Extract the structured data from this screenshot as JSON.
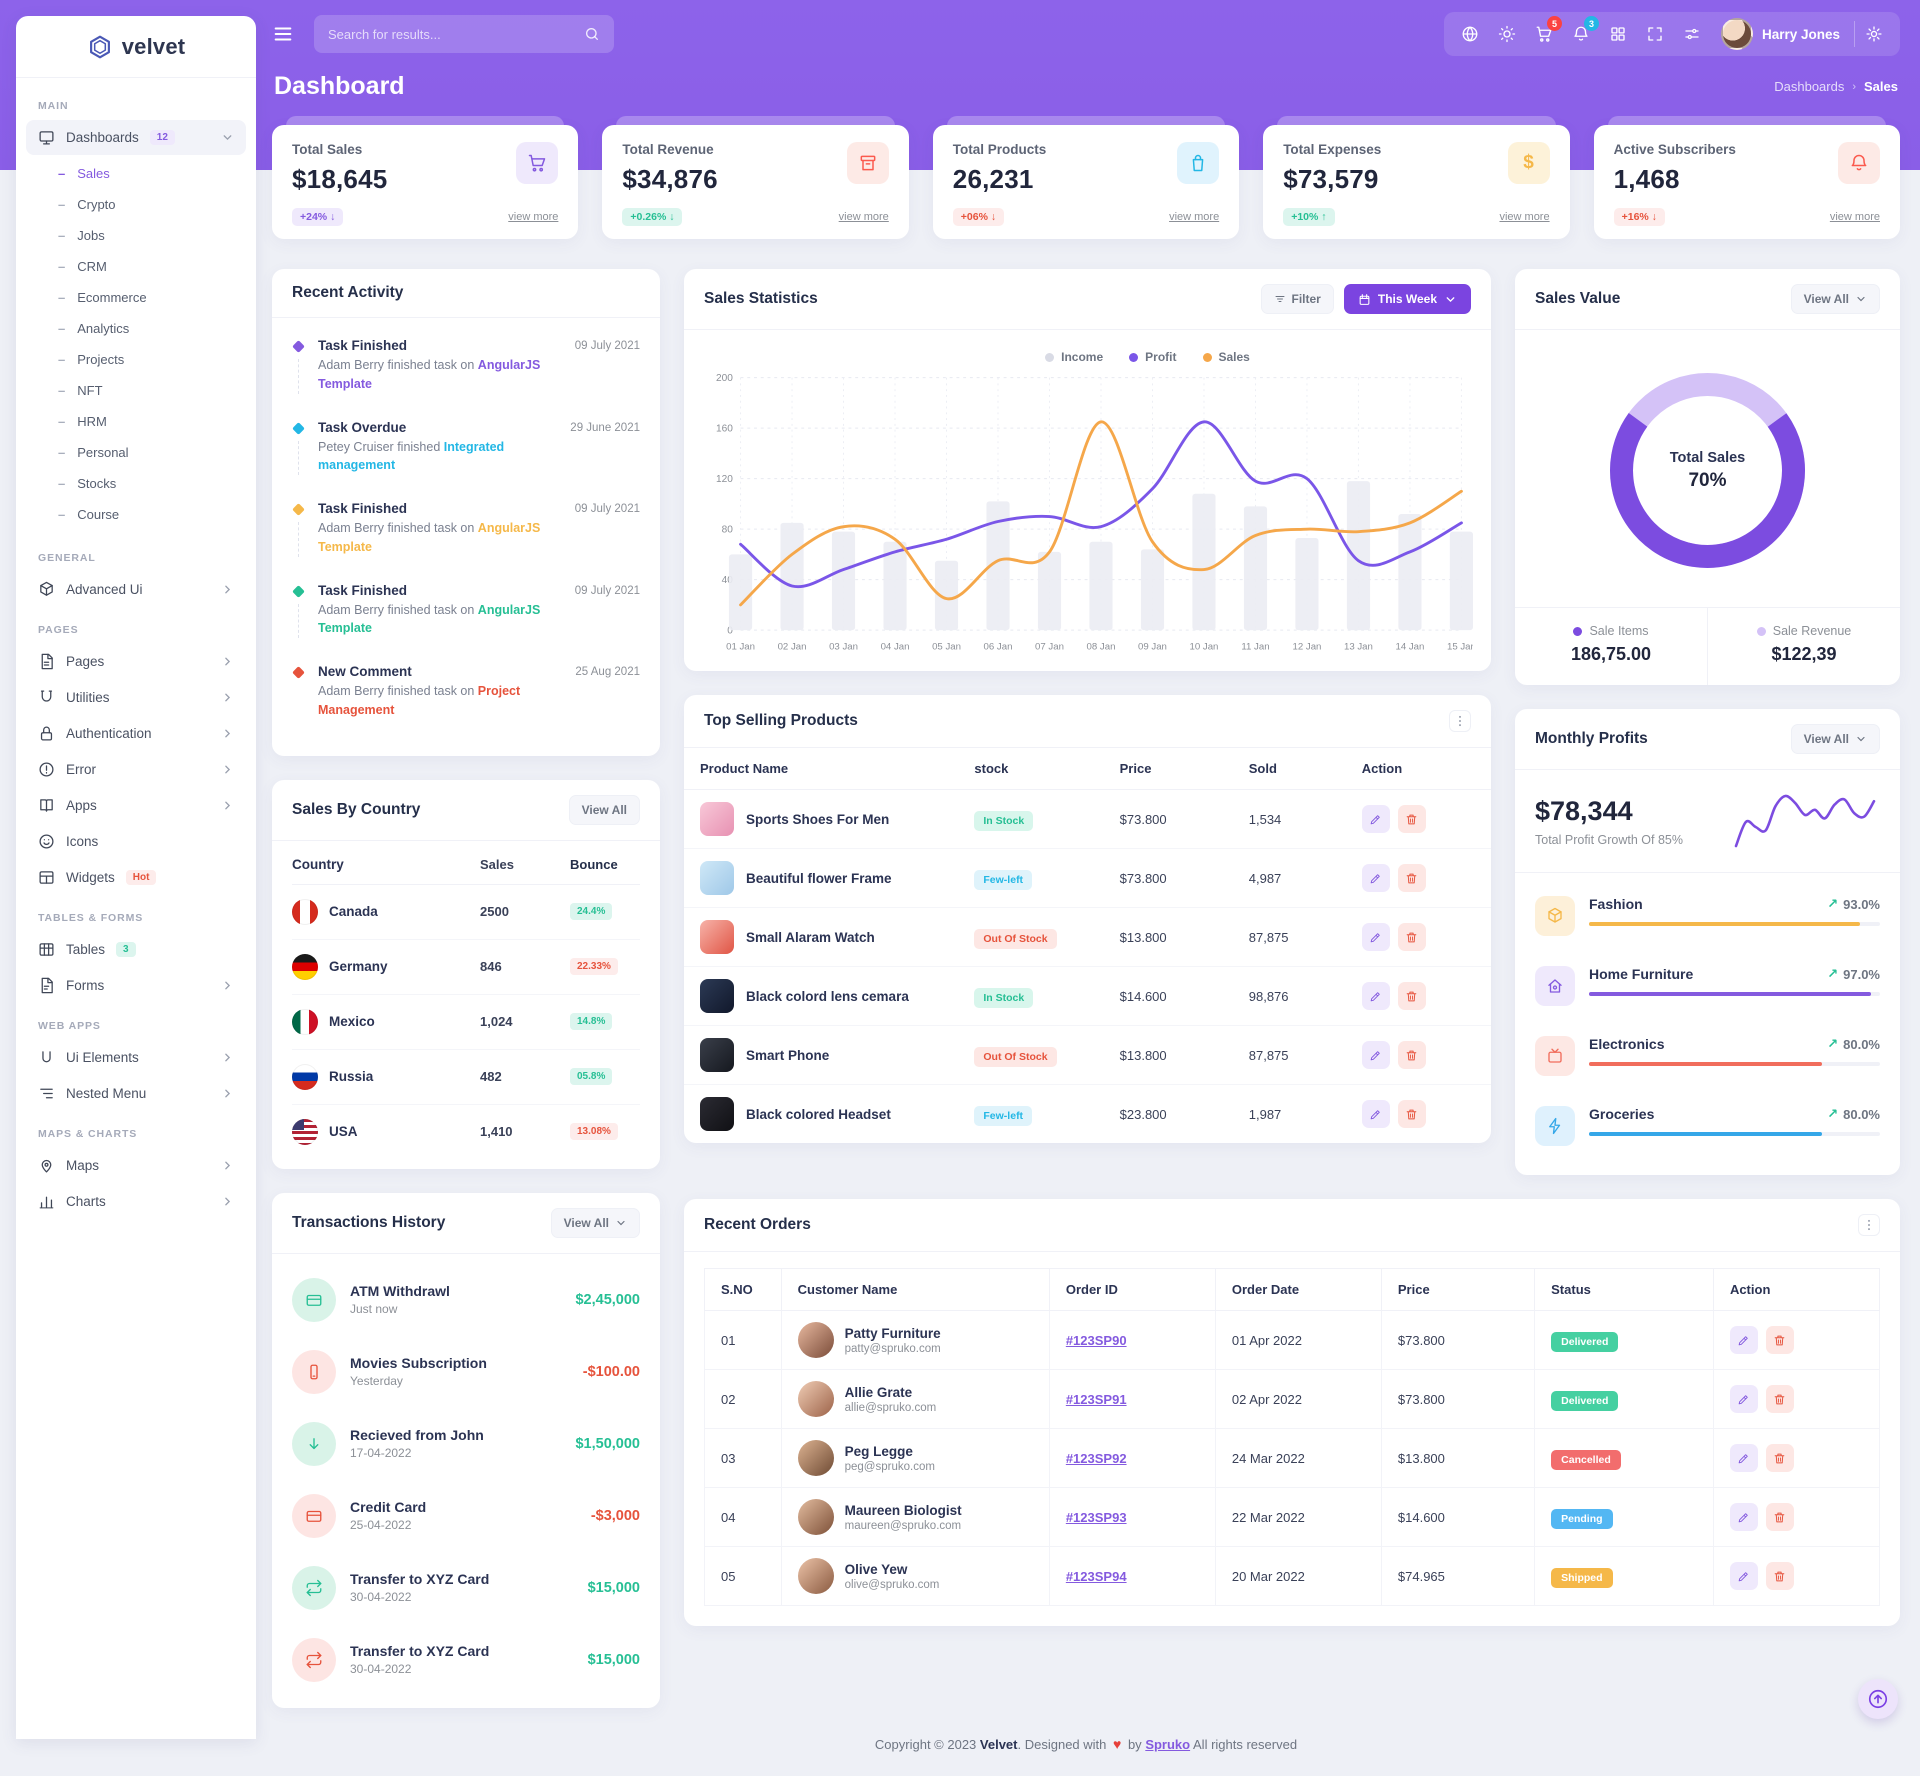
{
  "brand": {
    "name": "velvet"
  },
  "topbar": {
    "search_placeholder": "Search for results...",
    "user_name": "Harry Jones",
    "cart_badge": "5",
    "notifications_badge": "3"
  },
  "page": {
    "title": "Dashboard",
    "breadcrumb_parent": "Dashboards",
    "breadcrumb_current": "Sales"
  },
  "sidebar": {
    "sections": [
      {
        "label": "MAIN",
        "items": [
          {
            "icon": "monitor",
            "label": "Dashboards",
            "badge": "12",
            "badge_style": "purple",
            "chevron": "down",
            "active": true,
            "children": [
              {
                "label": "Sales",
                "active": true
              },
              {
                "label": "Crypto"
              },
              {
                "label": "Jobs"
              },
              {
                "label": "CRM"
              },
              {
                "label": "Ecommerce"
              },
              {
                "label": "Analytics"
              },
              {
                "label": "Projects"
              },
              {
                "label": "NFT"
              },
              {
                "label": "HRM"
              },
              {
                "label": "Personal"
              },
              {
                "label": "Stocks"
              },
              {
                "label": "Course"
              }
            ]
          }
        ]
      },
      {
        "label": "GENERAL",
        "items": [
          {
            "icon": "cube",
            "label": "Advanced Ui",
            "chevron": "right"
          }
        ]
      },
      {
        "label": "PAGES",
        "items": [
          {
            "icon": "pages",
            "label": "Pages",
            "chevron": "right"
          },
          {
            "icon": "magnet",
            "label": "Utilities",
            "chevron": "right"
          },
          {
            "icon": "lock",
            "label": "Authentication",
            "chevron": "right"
          },
          {
            "icon": "alert",
            "label": "Error",
            "chevron": "right"
          },
          {
            "icon": "book",
            "label": "Apps",
            "chevron": "right"
          },
          {
            "icon": "smile",
            "label": "Icons"
          },
          {
            "icon": "layout",
            "label": "Widgets",
            "badge": "Hot",
            "badge_style": "hot"
          }
        ]
      },
      {
        "label": "TABLES & FORMS",
        "items": [
          {
            "icon": "table",
            "label": "Tables",
            "badge": "3",
            "badge_style": "green"
          },
          {
            "icon": "form",
            "label": "Forms",
            "chevron": "right"
          }
        ]
      },
      {
        "label": "WEB APPS",
        "items": [
          {
            "icon": "uletter",
            "label": "Ui Elements",
            "chevron": "right"
          },
          {
            "icon": "nested",
            "label": "Nested Menu",
            "chevron": "right"
          }
        ]
      },
      {
        "label": "MAPS & CHARTS",
        "items": [
          {
            "icon": "map",
            "label": "Maps",
            "chevron": "right"
          },
          {
            "icon": "chart",
            "label": "Charts",
            "chevron": "right"
          }
        ]
      }
    ]
  },
  "stats": [
    {
      "label": "Total Sales",
      "value": "$18,645",
      "badge": "+24%",
      "arrow": "↓",
      "badge_style": "pb-purple",
      "link": "view more",
      "icon": "cart",
      "icon_style": "ic-purple"
    },
    {
      "label": "Total Revenue",
      "value": "$34,876",
      "badge": "+0.26%",
      "arrow": "↓",
      "badge_style": "pb-green",
      "link": "view more",
      "icon": "archive",
      "icon_style": "ic-red"
    },
    {
      "label": "Total Products",
      "value": "26,231",
      "badge": "+06%",
      "arrow": "↓",
      "badge_style": "pb-red",
      "link": "view more",
      "icon": "bag",
      "icon_style": "ic-blue"
    },
    {
      "label": "Total Expenses",
      "value": "$73,579",
      "badge": "+10%",
      "arrow": "↑",
      "badge_style": "pb-green",
      "link": "view more",
      "icon": "dollar",
      "icon_style": "ic-yellow"
    },
    {
      "label": "Active Subscribers",
      "value": "1,468",
      "badge": "+16%",
      "arrow": "↓",
      "badge_style": "pb-red",
      "link": "view more",
      "icon": "bell",
      "icon_style": "ic-red"
    }
  ],
  "recent_activity": {
    "title": "Recent Activity",
    "items": [
      {
        "title": "Task Finished",
        "text": "Adam Berry finished task on",
        "link": "AngularJS Template",
        "color": "#845adf",
        "date": "09 July 2021"
      },
      {
        "title": "Task Overdue",
        "text": "Petey Cruiser finished",
        "link": "Integrated management",
        "color": "#23b7e5",
        "date": "29 June 2021"
      },
      {
        "title": "Task Finished",
        "text": "Adam Berry finished task on",
        "link": "AngularJS Template",
        "color": "#f5b849",
        "date": "09 July 2021"
      },
      {
        "title": "Task Finished",
        "text": "Adam Berry finished task on",
        "link": "AngularJS Template",
        "color": "#26bf94",
        "date": "09 July 2021"
      },
      {
        "title": "New Comment",
        "text": "Adam Berry finished task on",
        "link": "Project Management",
        "color": "#e6533c",
        "date": "25 Aug 2021"
      }
    ]
  },
  "sales_statistics": {
    "title": "Sales Statistics",
    "filter_label": "Filter",
    "range_label": "This Week",
    "chart_data": {
      "type": "mixed-bar-line",
      "x": [
        "01 Jan",
        "02 Jan",
        "03 Jan",
        "04 Jan",
        "05 Jan",
        "06 Jan",
        "07 Jan",
        "08 Jan",
        "09 Jan",
        "10 Jan",
        "11 Jan",
        "12 Jan",
        "13 Jan",
        "14 Jan",
        "15 Jan"
      ],
      "ylim": [
        0,
        200
      ],
      "yticks": [
        0,
        40,
        80,
        120,
        160,
        200
      ],
      "series": [
        {
          "name": "Income",
          "type": "bar",
          "color": "#ebecf3",
          "values": [
            60,
            85,
            78,
            70,
            55,
            102,
            62,
            70,
            64,
            108,
            98,
            73,
            118,
            92,
            78
          ]
        },
        {
          "name": "Profit",
          "type": "line",
          "color": "#7a56e8",
          "values": [
            68,
            35,
            48,
            62,
            72,
            86,
            90,
            82,
            112,
            165,
            118,
            120,
            55,
            62,
            85
          ]
        },
        {
          "name": "Sales",
          "type": "line",
          "color": "#f5a74a",
          "values": [
            20,
            60,
            82,
            72,
            25,
            55,
            62,
            165,
            70,
            48,
            75,
            80,
            78,
            85,
            110
          ]
        }
      ]
    }
  },
  "sales_value": {
    "title": "Sales Value",
    "view_all": "View All",
    "center_label": "Total Sales",
    "center_value": "70%",
    "percent": 70,
    "colors": {
      "main": "#7c4ce0",
      "rest": "#d4c2f7"
    },
    "legend": [
      {
        "label": "Sale Items",
        "value": "186,75.00",
        "color": "#7c4ce0"
      },
      {
        "label": "Sale Revenue",
        "value": "$122,39",
        "color": "#d4c2f7"
      }
    ]
  },
  "sales_by_country": {
    "title": "Sales By Country",
    "view_all": "View All",
    "columns": [
      "Country",
      "Sales",
      "Bounce"
    ],
    "rows": [
      {
        "country": "Canada",
        "flag": "canada",
        "sales": "2500",
        "bounce": "24.4%",
        "trend": "up"
      },
      {
        "country": "Germany",
        "flag": "germany",
        "sales": "846",
        "bounce": "22.33%",
        "trend": "down"
      },
      {
        "country": "Mexico",
        "flag": "mexico",
        "sales": "1,024",
        "bounce": "14.8%",
        "trend": "up"
      },
      {
        "country": "Russia",
        "flag": "russia",
        "sales": "482",
        "bounce": "05.8%",
        "trend": "up"
      },
      {
        "country": "USA",
        "flag": "usa",
        "sales": "1,410",
        "bounce": "13.08%",
        "trend": "down"
      }
    ]
  },
  "top_selling": {
    "title": "Top Selling Products",
    "columns": [
      "Product Name",
      "stock",
      "Price",
      "Sold",
      "Action"
    ],
    "rows": [
      {
        "name": "Sports Shoes For Men",
        "stock": "In Stock",
        "stock_style": "sb-green",
        "price": "$73.800",
        "sold": "1,534",
        "thumb": "shoes"
      },
      {
        "name": "Beautiful flower Frame",
        "stock": "Few-left",
        "stock_style": "sb-blue",
        "price": "$73.800",
        "sold": "4,987",
        "thumb": "frame"
      },
      {
        "name": "Small Alaram Watch",
        "stock": "Out Of Stock",
        "stock_style": "sb-red",
        "price": "$13.800",
        "sold": "87,875",
        "thumb": "watch"
      },
      {
        "name": "Black colord lens cemara",
        "stock": "In Stock",
        "stock_style": "sb-green",
        "price": "$14.600",
        "sold": "98,876",
        "thumb": "camera"
      },
      {
        "name": "Smart Phone",
        "stock": "Out Of Stock",
        "stock_style": "sb-red",
        "price": "$13.800",
        "sold": "87,875",
        "thumb": "phone"
      },
      {
        "name": "Black colored Headset",
        "stock": "Few-left",
        "stock_style": "sb-blue",
        "price": "$23.800",
        "sold": "1,987",
        "thumb": "headset"
      }
    ]
  },
  "monthly_profits": {
    "title": "Monthly Profits",
    "view_all": "View All",
    "value": "$78,344",
    "subtitle": "Total Profit Growth Of 85%",
    "spark": [
      20,
      48,
      42,
      38,
      66,
      78,
      70,
      56,
      62,
      52,
      68,
      74,
      58,
      54,
      72
    ],
    "categories": [
      {
        "name": "Fashion",
        "percent": "93.0%",
        "bar": 93,
        "color": "#f5b849",
        "bg": "#fdf0d9",
        "icon": "cube"
      },
      {
        "name": "Home Furniture",
        "percent": "97.0%",
        "bar": 97,
        "color": "#845adf",
        "bg": "#efe9fc",
        "icon": "home"
      },
      {
        "name": "Electronics",
        "percent": "80.0%",
        "bar": 80,
        "color": "#f16d5c",
        "bg": "#fde8e4",
        "icon": "tv"
      },
      {
        "name": "Groceries",
        "percent": "80.0%",
        "bar": 80,
        "color": "#35a7e8",
        "bg": "#dff1fd",
        "icon": "zap"
      }
    ]
  },
  "transactions": {
    "title": "Transactions History",
    "view_all": "View All",
    "items": [
      {
        "name": "ATM Withdrawl",
        "date": "Just now",
        "amount": "$2,45,000",
        "amount_color": "amt-green",
        "icon": "card",
        "icon_color": "txc-green"
      },
      {
        "name": "Movies Subscription",
        "date": "Yesterday",
        "amount": "-$100.00",
        "amount_color": "amt-red",
        "icon": "phone",
        "icon_color": "txc-red"
      },
      {
        "name": "Recieved from John",
        "date": "17-04-2022",
        "amount": "$1,50,000",
        "amount_color": "amt-green",
        "icon": "arrowdown",
        "icon_color": "txc-green"
      },
      {
        "name": "Credit Card",
        "date": "25-04-2022",
        "amount": "-$3,000",
        "amount_color": "amt-red",
        "icon": "card",
        "icon_color": "txc-red"
      },
      {
        "name": "Transfer to XYZ Card",
        "date": "30-04-2022",
        "amount": "$15,000",
        "amount_color": "amt-green",
        "icon": "repeat",
        "icon_color": "txc-green"
      },
      {
        "name": "Transfer to XYZ Card",
        "date": "30-04-2022",
        "amount": "$15,000",
        "amount_color": "amt-green",
        "icon": "repeat",
        "icon_color": "txc-red"
      }
    ]
  },
  "recent_orders": {
    "title": "Recent Orders",
    "columns": [
      "S.NO",
      "Customer Name",
      "Order ID",
      "Order Date",
      "Price",
      "Status",
      "Action"
    ],
    "rows": [
      {
        "sno": "01",
        "name": "Patty Furniture",
        "email": "patty@spruko.com",
        "order_id": "#123SP90",
        "date": "01 Apr 2022",
        "price": "$73.800",
        "status": "Delivered",
        "status_style": "st-green",
        "tone": "a"
      },
      {
        "sno": "02",
        "name": "Allie Grate",
        "email": "allie@spruko.com",
        "order_id": "#123SP91",
        "date": "02 Apr 2022",
        "price": "$73.800",
        "status": "Delivered",
        "status_style": "st-green",
        "tone": "b"
      },
      {
        "sno": "03",
        "name": "Peg Legge",
        "email": "peg@spruko.com",
        "order_id": "#123SP92",
        "date": "24 Mar 2022",
        "price": "$13.800",
        "status": "Cancelled",
        "status_style": "st-red",
        "tone": "c"
      },
      {
        "sno": "04",
        "name": "Maureen Biologist",
        "email": "maureen@spruko.com",
        "order_id": "#123SP93",
        "date": "22 Mar 2022",
        "price": "$14.600",
        "status": "Pending",
        "status_style": "st-blue",
        "tone": "d"
      },
      {
        "sno": "05",
        "name": "Olive Yew",
        "email": "olive@spruko.com",
        "order_id": "#123SP94",
        "date": "20 Mar 2022",
        "price": "$74.965",
        "status": "Shipped",
        "status_style": "st-orange",
        "tone": "e"
      }
    ]
  },
  "footer": {
    "prefix": "Copyright © 2023",
    "brand": "Velvet",
    "middle": ". Designed with",
    "by": "by",
    "link": "Spruko",
    "suffix": "All rights reserved"
  }
}
